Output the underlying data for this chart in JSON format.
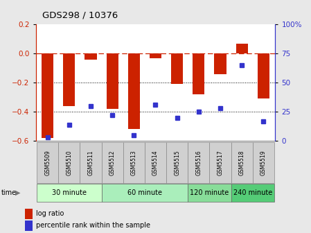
{
  "title": "GDS298 / 10376",
  "samples": [
    "GSM5509",
    "GSM5510",
    "GSM5511",
    "GSM5512",
    "GSM5513",
    "GSM5514",
    "GSM5515",
    "GSM5516",
    "GSM5517",
    "GSM5518",
    "GSM5519"
  ],
  "log_ratio": [
    -0.58,
    -0.36,
    -0.04,
    -0.38,
    -0.52,
    -0.03,
    -0.21,
    -0.28,
    -0.14,
    0.07,
    -0.31
  ],
  "percentile_rank": [
    3,
    14,
    30,
    22,
    5,
    31,
    20,
    25,
    28,
    65,
    17
  ],
  "bar_color": "#cc2200",
  "dot_color": "#3333cc",
  "groups": [
    {
      "label": "30 minute",
      "start": 0,
      "end": 3,
      "color": "#ccffcc"
    },
    {
      "label": "60 minute",
      "start": 3,
      "end": 7,
      "color": "#aaeebb"
    },
    {
      "label": "120 minute",
      "start": 7,
      "end": 9,
      "color": "#88dd99"
    },
    {
      "label": "240 minute",
      "start": 9,
      "end": 11,
      "color": "#55cc77"
    }
  ],
  "ylim_left": [
    -0.6,
    0.2
  ],
  "ylim_right": [
    0,
    100
  ],
  "yticks_left": [
    -0.6,
    -0.4,
    -0.2,
    0.0,
    0.2
  ],
  "yticks_right": [
    0,
    25,
    50,
    75,
    100
  ],
  "hline_dashed": 0.0,
  "hlines_dotted": [
    -0.2,
    -0.4
  ],
  "background_color": "#e8e8e8",
  "plot_bg": "#ffffff",
  "legend_items": [
    {
      "label": "log ratio",
      "color": "#cc2200"
    },
    {
      "label": "percentile rank within the sample",
      "color": "#3333cc"
    }
  ]
}
